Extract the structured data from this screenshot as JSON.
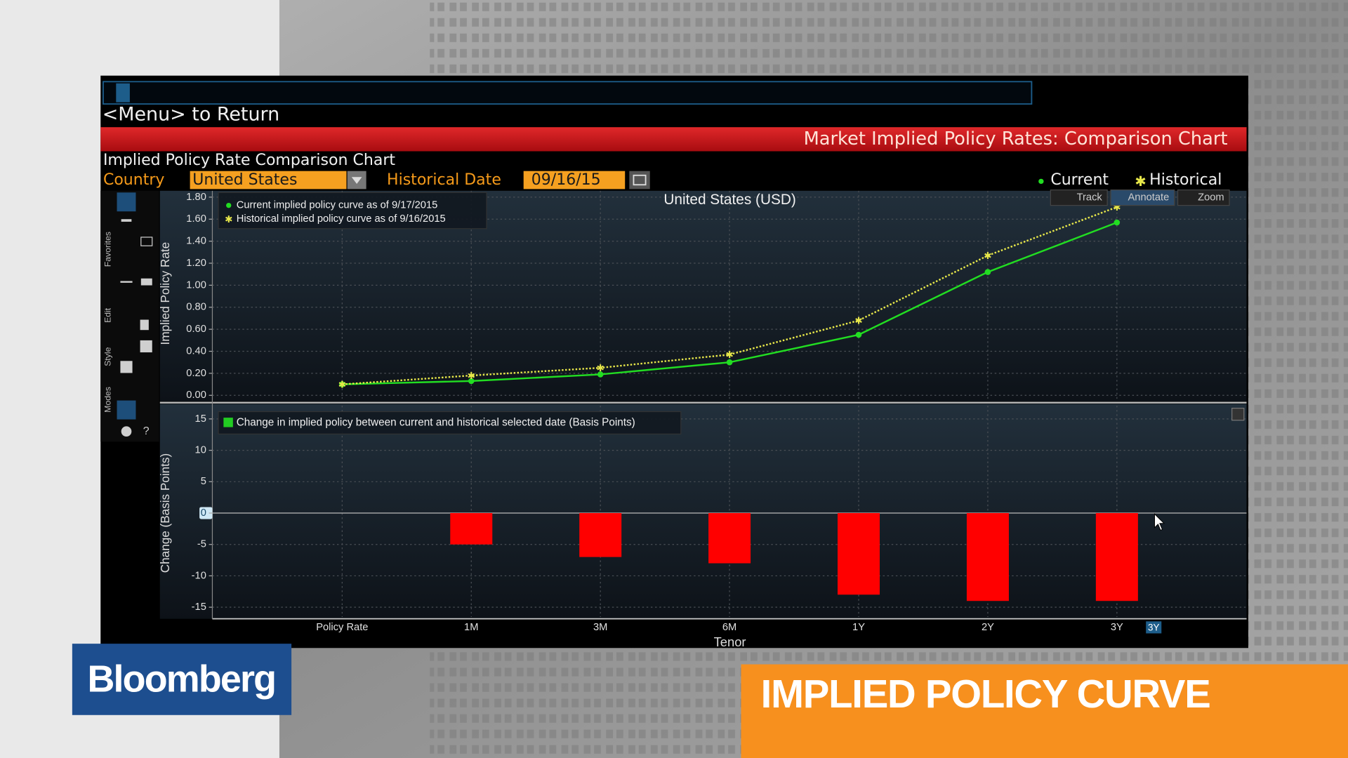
{
  "screen": {
    "menu": "<Menu> to Return",
    "banner": "Market Implied Policy Rates: Comparison Chart",
    "subtitle": "Implied Policy Rate Comparison Chart",
    "country_label": "Country",
    "country": "United States",
    "date_label": "Historical Date",
    "date": "09/16/15",
    "legend_current": "Current",
    "legend_historical": "Historical",
    "toolbar": [
      "Track",
      "Annotate",
      "Zoom"
    ],
    "side_tabs": [
      "Favorites",
      "Edit",
      "Style",
      "Modes"
    ],
    "range_button": "3Y"
  },
  "brand": "Bloomberg",
  "lower_third": "IMPLIED POLICY CURVE",
  "chart_data": [
    {
      "type": "line",
      "title": "United States (USD)",
      "ylabel": "Implied Policy Rate",
      "series": [
        {
          "name": "Current implied policy curve as of 9/17/2015",
          "color": "#22dd22",
          "linestyle": "solid",
          "marker": "circle",
          "values": [
            0.1,
            0.13,
            0.19,
            0.3,
            0.55,
            1.12,
            1.57
          ]
        },
        {
          "name": "Historical implied policy curve as of 9/16/2015",
          "color": "#e8e84a",
          "linestyle": "dotted",
          "marker": "star",
          "values": [
            0.1,
            0.18,
            0.25,
            0.37,
            0.68,
            1.27,
            1.71
          ]
        }
      ],
      "ylim": [
        0,
        1.85
      ],
      "yticks": [
        {
          "value": 0,
          "label": "0.00"
        },
        {
          "value": 0.2,
          "label": "0.20"
        },
        {
          "value": 0.4,
          "label": "0.40"
        },
        {
          "value": 0.6,
          "label": "0.60"
        },
        {
          "value": 0.8,
          "label": "0.80"
        },
        {
          "value": 1,
          "label": "1.00"
        },
        {
          "value": 1.2,
          "label": "1.20"
        },
        {
          "value": 1.4,
          "label": "1.40"
        },
        {
          "value": 1.6,
          "label": "1.60"
        },
        {
          "value": 1.8,
          "label": "1.80"
        }
      ],
      "grid": true
    },
    {
      "type": "bar",
      "xlabel": "Tenor",
      "ylabel": "Change (Basis Points)",
      "categories": [
        "Policy Rate",
        "1M",
        "3M",
        "6M",
        "1Y",
        "2Y",
        "3Y"
      ],
      "series": [
        {
          "name": "Change in implied policy between current and historical selected date (Basis Points)",
          "color": "#ff0000",
          "legend_color": "#22cc22",
          "values": [
            0,
            -5,
            -7,
            -8,
            -13,
            -14,
            -14
          ]
        }
      ],
      "ylim": [
        -16.5,
        16.5
      ],
      "yticks": [
        -15,
        -10,
        -5,
        0,
        5,
        10,
        15
      ],
      "grid": true
    }
  ]
}
